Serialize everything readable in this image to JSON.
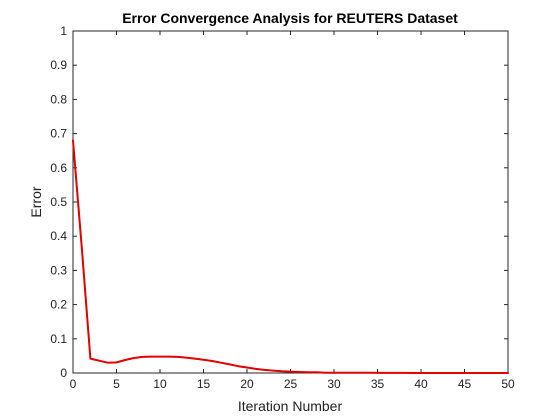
{
  "chart_data": {
    "type": "line",
    "title": "Error Convergence Analysis for REUTERS Dataset",
    "xlabel": "Iteration Number",
    "ylabel": "Error",
    "xlim": [
      0,
      50
    ],
    "ylim": [
      0,
      1
    ],
    "xticks": [
      0,
      5,
      10,
      15,
      20,
      25,
      30,
      35,
      40,
      45,
      50
    ],
    "yticks": [
      0,
      0.1,
      0.2,
      0.3,
      0.4,
      0.5,
      0.6,
      0.7,
      0.8,
      0.9,
      1
    ],
    "xtick_labels": [
      "0",
      "5",
      "10",
      "15",
      "20",
      "25",
      "30",
      "35",
      "40",
      "45",
      "50"
    ],
    "ytick_labels": [
      "0",
      "0.1",
      "0.2",
      "0.3",
      "0.4",
      "0.5",
      "0.6",
      "0.7",
      "0.8",
      "0.9",
      "1"
    ],
    "grid": false,
    "box": true,
    "series": [
      {
        "color": "#e00000",
        "x": [
          0,
          1,
          2,
          3,
          4,
          5,
          6,
          7,
          8,
          9,
          10,
          11,
          12,
          13,
          14,
          15,
          16,
          17,
          18,
          19,
          20,
          21,
          22,
          23,
          24,
          25,
          26,
          27,
          28,
          29,
          30,
          32,
          34,
          36,
          38,
          40,
          42,
          44,
          46,
          48,
          50
        ],
        "y": [
          0.68,
          0.37,
          0.042,
          0.036,
          0.03,
          0.031,
          0.038,
          0.044,
          0.047,
          0.048,
          0.048,
          0.048,
          0.047,
          0.045,
          0.042,
          0.039,
          0.035,
          0.03,
          0.025,
          0.02,
          0.016,
          0.012,
          0.009,
          0.007,
          0.005,
          0.004,
          0.003,
          0.002,
          0.002,
          0.001,
          0.001,
          0.001,
          0.0005,
          0.0003,
          0.0002,
          0.0001,
          0.0001,
          0,
          0,
          0,
          0
        ]
      }
    ]
  }
}
